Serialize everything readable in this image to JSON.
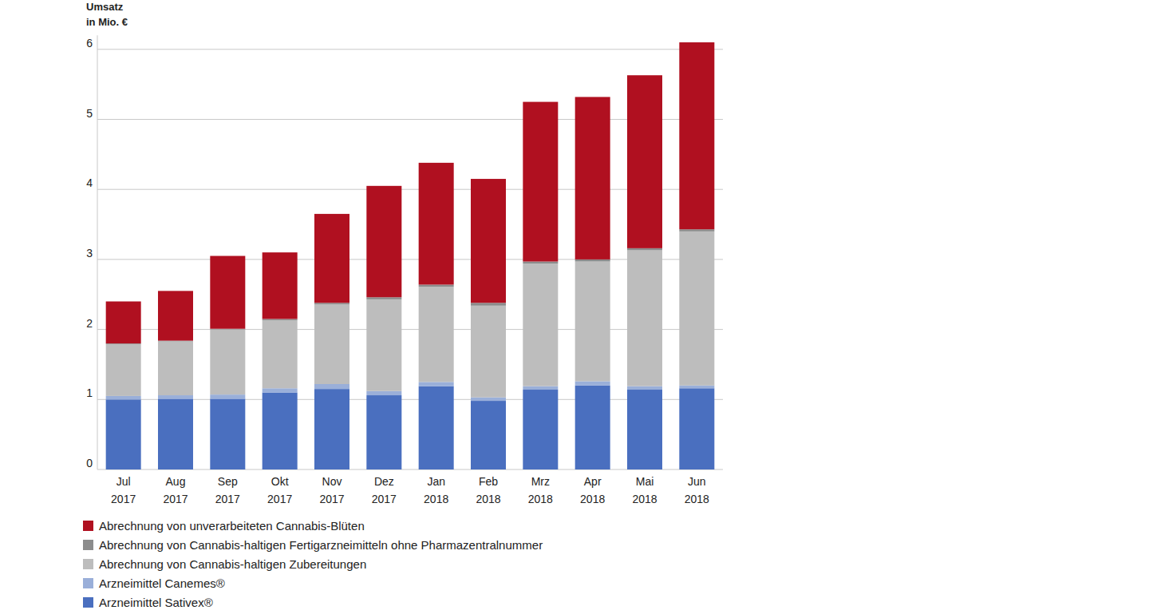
{
  "chart_data": {
    "type": "bar",
    "stacked": true,
    "grid": true,
    "legend": "bottom-left",
    "y_label": "Umsatz in Mio. €",
    "categories": [
      "Jul 2017",
      "Aug 2017",
      "Sep 2017",
      "Okt 2017",
      "Nov 2017",
      "Dez 2017",
      "Jan 2018",
      "Feb 2018",
      "Mrz 2018",
      "Apr 2018",
      "Mai 2018",
      "Jun 2018"
    ],
    "ylim": [
      0,
      6.2
    ],
    "yticks": [
      0,
      1,
      2,
      3,
      4,
      5,
      6
    ],
    "series": [
      {
        "name": "Arzneimittel Sativex®",
        "color": "#4a6fbf",
        "values": [
          1.0,
          1.01,
          1.01,
          1.1,
          1.15,
          1.06,
          1.19,
          0.98,
          1.14,
          1.2,
          1.14,
          1.16
        ]
      },
      {
        "name": "Arzneimittel Canemes®",
        "color": "#9aafd9",
        "values": [
          0.05,
          0.05,
          0.06,
          0.06,
          0.07,
          0.06,
          0.06,
          0.05,
          0.05,
          0.06,
          0.05,
          0.04
        ]
      },
      {
        "name": "Abrechnung von Cannabis-haltigen Zubereitungen",
        "color": "#bdbdbd",
        "values": [
          0.74,
          0.77,
          0.93,
          0.97,
          1.14,
          1.31,
          1.36,
          1.31,
          1.75,
          1.71,
          1.94,
          2.2
        ]
      },
      {
        "name": "Abrechnung von Cannabis-haltigen Fertigarzneimitteln ohne Pharmazentralnummer",
        "color": "#8c8c8c",
        "values": [
          0.01,
          0.01,
          0.01,
          0.02,
          0.02,
          0.03,
          0.03,
          0.04,
          0.03,
          0.03,
          0.03,
          0.03
        ]
      },
      {
        "name": "Abrechnung von unverarbeiteten Cannabis-Blüten",
        "color": "#b01020",
        "values": [
          0.6,
          0.71,
          1.04,
          0.95,
          1.27,
          1.59,
          1.74,
          1.77,
          2.28,
          2.32,
          2.47,
          2.67
        ]
      }
    ]
  }
}
